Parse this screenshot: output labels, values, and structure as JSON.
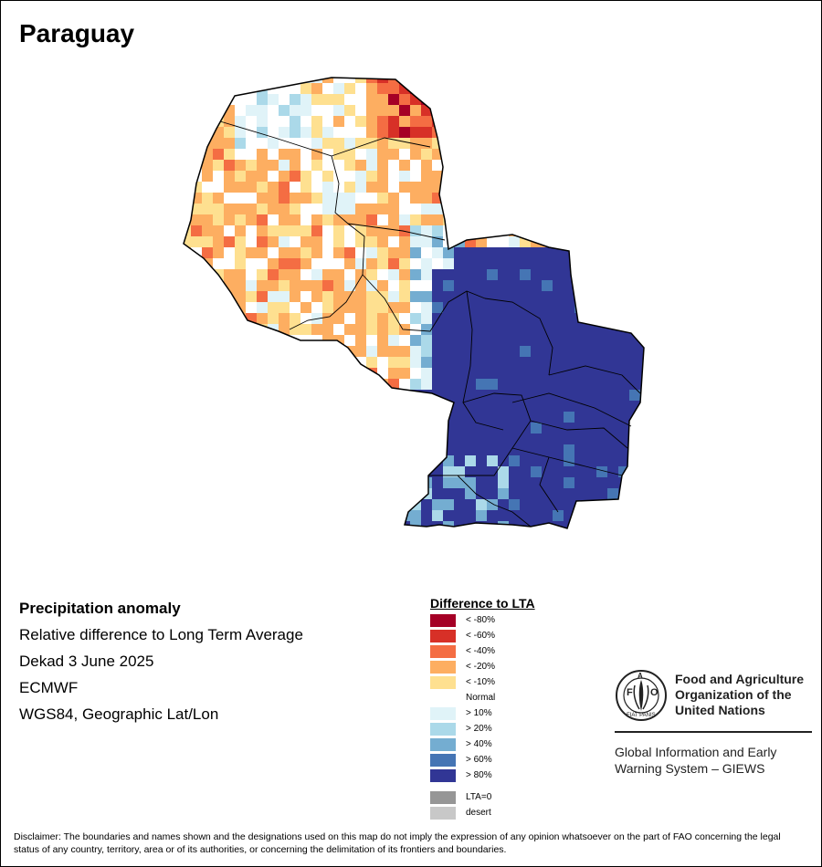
{
  "map": {
    "title": "Paraguay",
    "info_lines": [
      "Precipitation anomaly",
      "Relative difference to Long Term Average",
      "Dekad 3 June 2025",
      "ECMWF",
      "WGS84, Geographic Lat/Lon"
    ],
    "regions": [
      {
        "area": "Chaco (western Paraguay)",
        "dominant_class": "< -20%"
      },
      {
        "area": "Northeastern Chaco",
        "dominant_class": "< -40%"
      },
      {
        "area": "Central and eastern Paraguay",
        "dominant_class": "> 80%"
      }
    ]
  },
  "legend": {
    "title": "Difference to LTA",
    "classes": [
      {
        "label": "< -80%",
        "color": "#a50026"
      },
      {
        "label": "< -60%",
        "color": "#d73027"
      },
      {
        "label": "< -40%",
        "color": "#f46d43"
      },
      {
        "label": "< -20%",
        "color": "#fdae61"
      },
      {
        "label": "< -10%",
        "color": "#fee090"
      },
      {
        "label": "Normal",
        "color": "#ffffff"
      },
      {
        "label": "> 10%",
        "color": "#e0f3f8"
      },
      {
        "label": "> 20%",
        "color": "#abd9e9"
      },
      {
        "label": "> 40%",
        "color": "#74add1"
      },
      {
        "label": "> 60%",
        "color": "#4575b4"
      },
      {
        "label": "> 80%",
        "color": "#313695"
      }
    ],
    "extra": [
      {
        "label": "LTA=0",
        "color": "#969696"
      },
      {
        "label": "desert",
        "color": "#c8c8c8"
      }
    ]
  },
  "organization": {
    "name": "Food and Agriculture Organization of the United Nations",
    "logo_letters": "FAO",
    "logo_motto": "FIAT PANIS",
    "unit": "Global Information and Early Warning System – GIEWS"
  },
  "disclaimer": "Disclaimer: The boundaries and names shown and the designations used on this map do not imply the expression of any opinion whatsoever on the part of FAO concerning the legal status of any country, territory, area or of its authorities, or concerning the delimitation of its frontiers and boundaries."
}
